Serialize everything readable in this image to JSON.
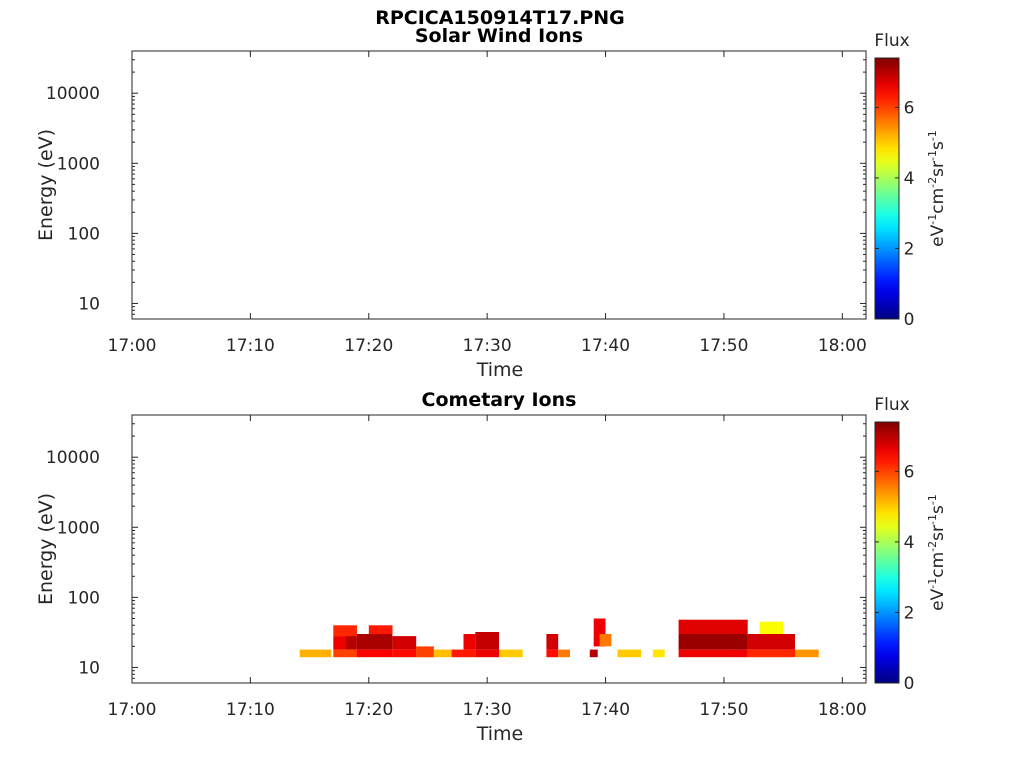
{
  "figure": {
    "title": "RPCICA150914T17.PNG"
  },
  "chart_data": [
    {
      "type": "heatmap",
      "title": "Solar Wind Ions",
      "xlabel": "Time",
      "ylabel": "Energy (eV)",
      "x_ticks": [
        "17:00",
        "17:10",
        "17:20",
        "17:30",
        "17:40",
        "17:50",
        "18:00"
      ],
      "x_range": [
        "17:00",
        "18:02"
      ],
      "y_scale": "log",
      "y_ticks": [
        "10",
        "100",
        "1000",
        "10000"
      ],
      "y_range": [
        6,
        40000
      ],
      "colorbar": {
        "title": "Flux",
        "label": "eV-1cm-2sr-1s-1",
        "ticks": [
          "0",
          "2",
          "4",
          "6"
        ],
        "range": [
          0,
          7.4
        ]
      },
      "cells": []
    },
    {
      "type": "heatmap",
      "title": "Cometary Ions",
      "xlabel": "Time",
      "ylabel": "Energy (eV)",
      "x_ticks": [
        "17:00",
        "17:10",
        "17:20",
        "17:30",
        "17:40",
        "17:50",
        "18:00"
      ],
      "x_range": [
        "17:00",
        "18:02"
      ],
      "y_scale": "log",
      "y_ticks": [
        "10",
        "100",
        "1000",
        "10000"
      ],
      "y_range": [
        6,
        40000
      ],
      "colorbar": {
        "title": "Flux",
        "label": "eV-1cm-2sr-1s-1",
        "ticks": [
          "0",
          "2",
          "4",
          "6"
        ],
        "range": [
          0,
          7.4
        ]
      },
      "cells": [
        {
          "t0": "17:14:10",
          "t1": "17:16:50",
          "e0": 14,
          "e1": 18,
          "v": 5.2
        },
        {
          "t0": "17:17:00",
          "t1": "17:19:00",
          "e0": 14,
          "e1": 18,
          "v": 6.0
        },
        {
          "t0": "17:17:00",
          "t1": "17:18:00",
          "e0": 18,
          "e1": 28,
          "v": 6.6
        },
        {
          "t0": "17:18:00",
          "t1": "17:19:00",
          "e0": 18,
          "e1": 32,
          "v": 7.0
        },
        {
          "t0": "17:17:00",
          "t1": "17:19:00",
          "e0": 28,
          "e1": 40,
          "v": 6.2
        },
        {
          "t0": "17:19:00",
          "t1": "17:22:00",
          "e0": 14,
          "e1": 18,
          "v": 6.5
        },
        {
          "t0": "17:19:00",
          "t1": "17:22:00",
          "e0": 18,
          "e1": 30,
          "v": 7.1
        },
        {
          "t0": "17:20:00",
          "t1": "17:22:00",
          "e0": 30,
          "e1": 40,
          "v": 6.3
        },
        {
          "t0": "17:22:00",
          "t1": "17:24:00",
          "e0": 14,
          "e1": 18,
          "v": 6.4
        },
        {
          "t0": "17:22:00",
          "t1": "17:24:00",
          "e0": 18,
          "e1": 28,
          "v": 6.8
        },
        {
          "t0": "17:24:00",
          "t1": "17:25:30",
          "e0": 14,
          "e1": 20,
          "v": 6.0
        },
        {
          "t0": "17:25:30",
          "t1": "17:27:00",
          "e0": 14,
          "e1": 18,
          "v": 5.1
        },
        {
          "t0": "17:27:00",
          "t1": "17:29:00",
          "e0": 14,
          "e1": 18,
          "v": 6.3
        },
        {
          "t0": "17:28:00",
          "t1": "17:29:00",
          "e0": 18,
          "e1": 30,
          "v": 6.6
        },
        {
          "t0": "17:29:00",
          "t1": "17:31:00",
          "e0": 14,
          "e1": 18,
          "v": 6.6
        },
        {
          "t0": "17:29:00",
          "t1": "17:31:00",
          "e0": 18,
          "e1": 32,
          "v": 6.9
        },
        {
          "t0": "17:31:00",
          "t1": "17:33:00",
          "e0": 14,
          "e1": 18,
          "v": 5.0
        },
        {
          "t0": "17:35:00",
          "t1": "17:36:00",
          "e0": 14,
          "e1": 18,
          "v": 6.4
        },
        {
          "t0": "17:35:00",
          "t1": "17:36:00",
          "e0": 18,
          "e1": 30,
          "v": 6.8
        },
        {
          "t0": "17:36:00",
          "t1": "17:37:00",
          "e0": 14,
          "e1": 18,
          "v": 5.6
        },
        {
          "t0": "17:38:40",
          "t1": "17:39:20",
          "e0": 14,
          "e1": 18,
          "v": 7.0
        },
        {
          "t0": "17:39:00",
          "t1": "17:40:00",
          "e0": 20,
          "e1": 50,
          "v": 6.6
        },
        {
          "t0": "17:39:30",
          "t1": "17:40:30",
          "e0": 20,
          "e1": 30,
          "v": 5.6
        },
        {
          "t0": "17:41:00",
          "t1": "17:43:00",
          "e0": 14,
          "e1": 18,
          "v": 5.0
        },
        {
          "t0": "17:44:00",
          "t1": "17:45:00",
          "e0": 14,
          "e1": 18,
          "v": 4.8
        },
        {
          "t0": "17:46:10",
          "t1": "17:52:00",
          "e0": 14,
          "e1": 18,
          "v": 6.6
        },
        {
          "t0": "17:46:10",
          "t1": "17:52:00",
          "e0": 18,
          "e1": 30,
          "v": 7.2
        },
        {
          "t0": "17:46:10",
          "t1": "17:52:00",
          "e0": 30,
          "e1": 48,
          "v": 6.7
        },
        {
          "t0": "17:52:00",
          "t1": "17:56:00",
          "e0": 14,
          "e1": 18,
          "v": 6.2
        },
        {
          "t0": "17:52:00",
          "t1": "17:56:00",
          "e0": 18,
          "e1": 30,
          "v": 6.8
        },
        {
          "t0": "17:53:00",
          "t1": "17:55:00",
          "e0": 30,
          "e1": 45,
          "v": 4.6
        },
        {
          "t0": "17:56:00",
          "t1": "17:58:00",
          "e0": 14,
          "e1": 18,
          "v": 5.4
        }
      ]
    }
  ]
}
